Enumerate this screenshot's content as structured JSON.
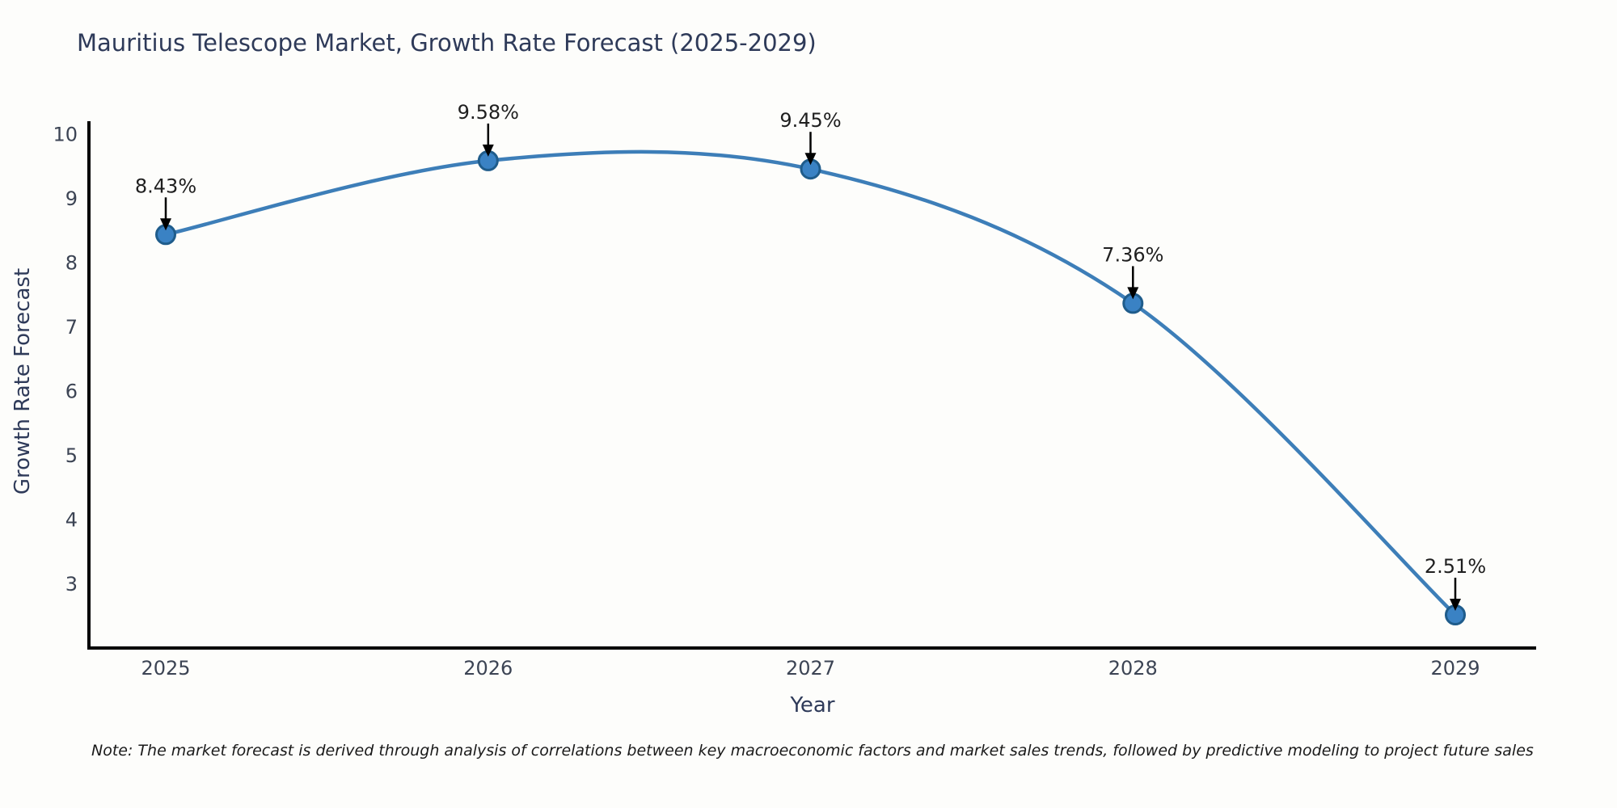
{
  "note": "Note: The market forecast is derived through analysis of correlations between key macroeconomic factors and market sales trends, followed by predictive modeling to project future sales",
  "chart_data": {
    "type": "line",
    "title": "Mauritius Telescope Market, Growth Rate Forecast (2025-2029)",
    "xlabel": "Year",
    "ylabel": "Growth Rate Forecast",
    "categories": [
      "2025",
      "2026",
      "2027",
      "2028",
      "2029"
    ],
    "values": [
      8.43,
      9.58,
      9.45,
      7.36,
      2.51
    ],
    "labels": [
      "8.43%",
      "9.58%",
      "9.45%",
      "7.36%",
      "2.51%"
    ],
    "yticks": [
      3,
      4,
      5,
      6,
      7,
      8,
      9,
      10
    ],
    "ylim": [
      2.02,
      10.17
    ],
    "grid": false,
    "legend": false,
    "smooth": true,
    "line_color": "#3d7eb8",
    "marker_fill": "#3a82c4",
    "marker_edge": "#1f5c8b",
    "arrow_color": "#000000",
    "annotation_style": "value label with down arrow above each point"
  }
}
